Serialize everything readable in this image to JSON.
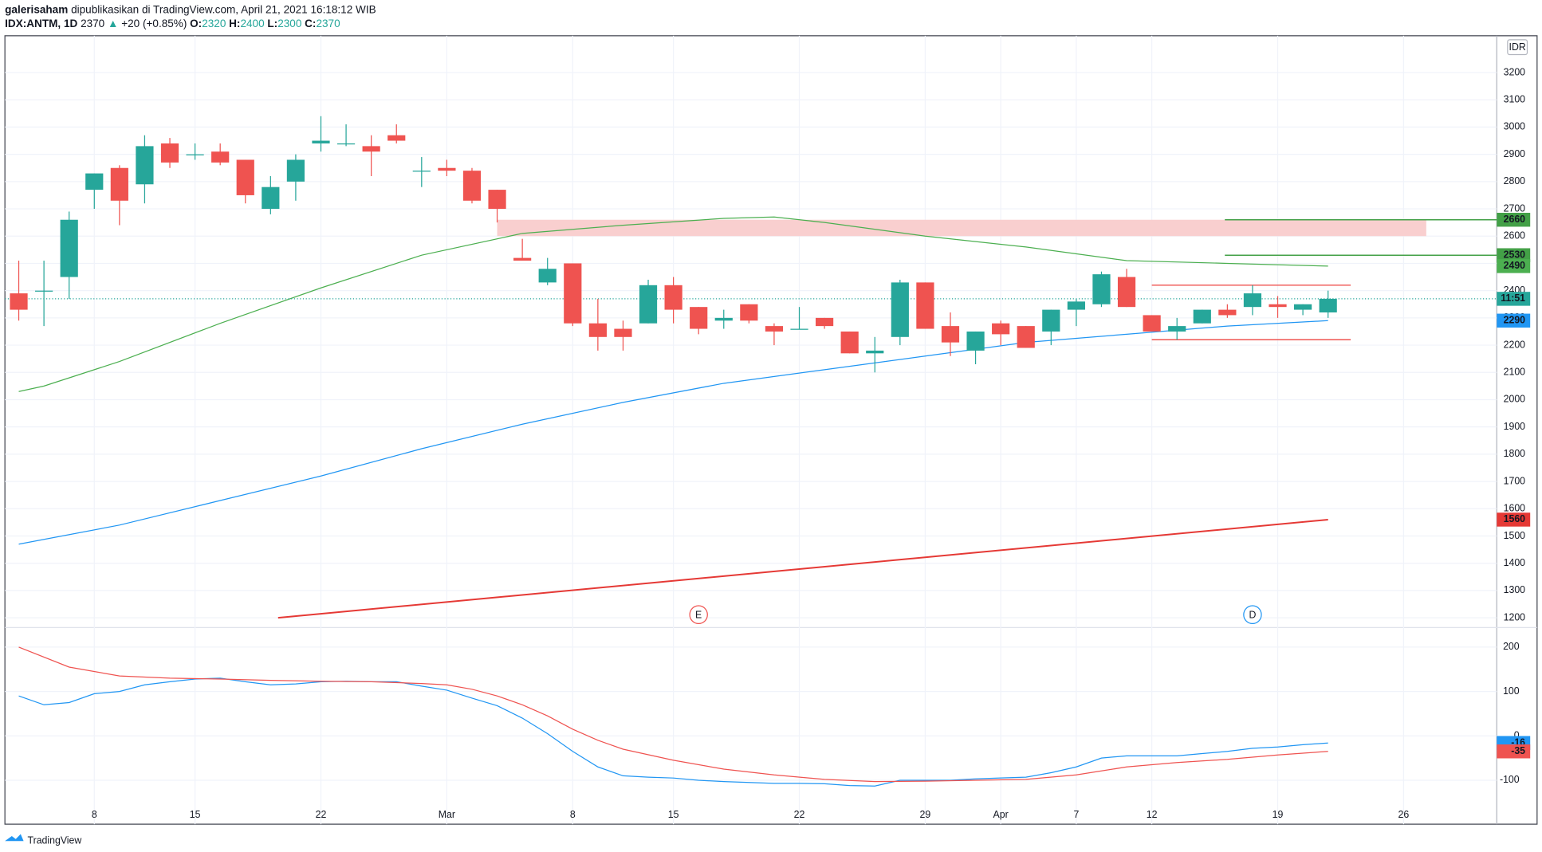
{
  "header": {
    "author": "galerisaham",
    "published": "dipublikasikan di TradingView.com, April 21, 2021 16:18:12 WIB",
    "symbol": "IDX:ANTM, 1D",
    "last": "2370",
    "arrow": "▲",
    "change": "+20 (+0.85%)",
    "ohlc": [
      {
        "label": "O:",
        "value": "2320"
      },
      {
        "label": "H:",
        "value": "2400"
      },
      {
        "label": "L:",
        "value": "2300"
      },
      {
        "label": "C:",
        "value": "2370"
      }
    ]
  },
  "footer": "TradingView",
  "chart_data": {
    "type": "candlestick",
    "currency": "IDR",
    "xlim": [
      -0.55,
      58.7
    ],
    "xticks": [
      {
        "value": 3,
        "label": "8"
      },
      {
        "value": 7,
        "label": "15"
      },
      {
        "value": 12,
        "label": "22"
      },
      {
        "value": 17,
        "label": "Mar"
      },
      {
        "value": 22,
        "label": "8"
      },
      {
        "value": 26,
        "label": "15"
      },
      {
        "value": 31,
        "label": "22"
      },
      {
        "value": 36,
        "label": "29"
      },
      {
        "value": 39,
        "label": "Apr"
      },
      {
        "value": 42,
        "label": "7"
      },
      {
        "value": 45,
        "label": "12"
      },
      {
        "value": 50,
        "label": "19"
      },
      {
        "value": 55,
        "label": "26"
      }
    ],
    "up_color": "#26a69a",
    "down_color": "#ef5350",
    "x": [
      0,
      1,
      2,
      3,
      4,
      5,
      6,
      7,
      8,
      9,
      10,
      11,
      12,
      13,
      14,
      15,
      16,
      17,
      18,
      19,
      20,
      21,
      22,
      23,
      24,
      25,
      26,
      27,
      28,
      29,
      30,
      31,
      32,
      33,
      34,
      35,
      36,
      37,
      38,
      39,
      40,
      41,
      42,
      43,
      44,
      45,
      46,
      47,
      48,
      49,
      50,
      51,
      52
    ],
    "open": [
      2390,
      2400,
      2450,
      2770,
      2850,
      2790,
      2940,
      2900,
      2910,
      2880,
      2700,
      2800,
      2940,
      2940,
      2930,
      2970,
      2840,
      2850,
      2840,
      2770,
      2520,
      2430,
      2500,
      2280,
      2260,
      2280,
      2420,
      2340,
      2290,
      2350,
      2270,
      2260,
      2300,
      2250,
      2170,
      2230,
      2430,
      2270,
      2180,
      2280,
      2270,
      2250,
      2330,
      2350,
      2450,
      2310,
      2250,
      2280,
      2330,
      2340,
      2350,
      2330,
      2320
    ],
    "high": [
      2510,
      2510,
      2690,
      2830,
      2860,
      2970,
      2960,
      2940,
      2940,
      2880,
      2820,
      2900,
      3040,
      3010,
      2970,
      3010,
      2890,
      2880,
      2850,
      2770,
      2590,
      2520,
      2500,
      2370,
      2290,
      2440,
      2450,
      2340,
      2330,
      2350,
      2280,
      2340,
      2300,
      2250,
      2230,
      2440,
      2430,
      2320,
      2250,
      2290,
      2270,
      2330,
      2370,
      2470,
      2480,
      2310,
      2300,
      2330,
      2350,
      2420,
      2380,
      2350,
      2400
    ],
    "low": [
      2290,
      2270,
      2370,
      2700,
      2640,
      2720,
      2850,
      2880,
      2860,
      2720,
      2680,
      2730,
      2910,
      2930,
      2820,
      2940,
      2780,
      2820,
      2720,
      2650,
      2510,
      2420,
      2270,
      2180,
      2180,
      2280,
      2280,
      2240,
      2260,
      2280,
      2200,
      2260,
      2260,
      2170,
      2100,
      2200,
      2260,
      2160,
      2130,
      2200,
      2190,
      2200,
      2270,
      2340,
      2340,
      2250,
      2220,
      2280,
      2300,
      2310,
      2300,
      2310,
      2300
    ],
    "close": [
      2330,
      2400,
      2660,
      2830,
      2730,
      2930,
      2870,
      2900,
      2870,
      2750,
      2780,
      2880,
      2950,
      2940,
      2910,
      2950,
      2840,
      2840,
      2730,
      2700,
      2510,
      2480,
      2280,
      2230,
      2230,
      2420,
      2330,
      2260,
      2300,
      2290,
      2250,
      2260,
      2270,
      2170,
      2180,
      2430,
      2260,
      2210,
      2250,
      2240,
      2190,
      2330,
      2360,
      2460,
      2340,
      2250,
      2270,
      2330,
      2310,
      2390,
      2340,
      2350,
      2370
    ],
    "ylim": [
      1164,
      3335
    ],
    "yticks": [
      1200,
      1300,
      1400,
      1500,
      1600,
      1700,
      1800,
      1900,
      2000,
      2100,
      2200,
      2300,
      2400,
      2500,
      2600,
      2700,
      2800,
      2900,
      3000,
      3100,
      3200
    ],
    "lines": [
      {
        "color": "#4caf50",
        "x": [
          0,
          1,
          4,
          8,
          12,
          16,
          20,
          24,
          28,
          30,
          32,
          36,
          40,
          44,
          48,
          52
        ],
        "values": [
          2030,
          2050,
          2140,
          2280,
          2410,
          2530,
          2610,
          2640,
          2665,
          2670,
          2650,
          2600,
          2560,
          2510,
          2500,
          2490
        ]
      },
      {
        "color": "#2196f3",
        "x": [
          0,
          4,
          8,
          12,
          16,
          20,
          24,
          28,
          32,
          36,
          40,
          44,
          48,
          52
        ],
        "values": [
          1470,
          1540,
          1630,
          1720,
          1820,
          1910,
          1990,
          2060,
          2110,
          2160,
          2210,
          2240,
          2270,
          2290
        ]
      },
      {
        "color": "#e53935",
        "x": [
          10.3,
          52
        ],
        "values": [
          1200,
          1560
        ]
      }
    ],
    "zone": {
      "color": "#f9cfcf",
      "x": [
        19,
        55.9
      ],
      "values": [
        2600,
        2660
      ]
    },
    "levels": [
      {
        "color": "#43a047",
        "value": 2660,
        "x": [
          47.9,
          58.7
        ]
      },
      {
        "color": "#43a047",
        "value": 2530,
        "x": [
          47.9,
          58.7
        ]
      },
      {
        "color": "#ef5350",
        "value": 2420,
        "x": [
          45,
          52.9
        ]
      },
      {
        "color": "#ef5350",
        "value": 2220,
        "x": [
          45,
          52.9
        ]
      }
    ],
    "current_price": {
      "value": 2370,
      "label": "11:51",
      "color": "#26a69a"
    },
    "price_labels": [
      {
        "value": 2660,
        "color": "#43a047"
      },
      {
        "value": 2530,
        "color": "#43a047"
      },
      {
        "value": 2490,
        "color": "#4caf50"
      },
      {
        "value": 2290,
        "color": "#2196f3"
      },
      {
        "value": 1560,
        "color": "#e53935"
      }
    ],
    "events": [
      {
        "label": "E",
        "x": 27,
        "color": "#ef5350"
      },
      {
        "label": "D",
        "x": 49,
        "color": "#2196f3"
      }
    ],
    "indicator": {
      "ylim": [
        -199,
        244
      ],
      "yticks": [
        -100,
        0,
        100,
        200
      ],
      "series": [
        {
          "color": "#2196f3",
          "x": [
            0,
            1,
            2,
            3,
            4,
            5,
            6,
            7,
            8,
            9,
            10,
            11,
            12,
            13,
            14,
            15,
            16,
            17,
            18,
            19,
            20,
            21,
            22,
            23,
            24,
            25,
            26,
            27,
            28,
            29,
            30,
            31,
            32,
            33,
            34,
            35,
            36,
            37,
            38,
            39,
            40,
            41,
            42,
            43,
            44,
            45,
            46,
            47,
            48,
            49,
            50,
            51,
            52
          ],
          "values": [
            90,
            70,
            75,
            95,
            100,
            115,
            122,
            128,
            130,
            122,
            115,
            117,
            122,
            123,
            122,
            122,
            112,
            103,
            85,
            68,
            40,
            5,
            -35,
            -70,
            -90,
            -93,
            -95,
            -100,
            -103,
            -105,
            -107,
            -107,
            -108,
            -112,
            -113,
            -100,
            -100,
            -100,
            -97,
            -95,
            -93,
            -83,
            -70,
            -50,
            -45,
            -45,
            -45,
            -40,
            -35,
            -28,
            -25,
            -20,
            -16
          ]
        },
        {
          "color": "#ef5350",
          "x": [
            0,
            2,
            4,
            6,
            8,
            10,
            12,
            14,
            16,
            17,
            18,
            19,
            20,
            21,
            22,
            23,
            24,
            26,
            28,
            30,
            32,
            34,
            36,
            38,
            40,
            42,
            44,
            46,
            48,
            50,
            52
          ],
          "values": [
            200,
            155,
            135,
            130,
            128,
            125,
            123,
            122,
            118,
            115,
            105,
            90,
            70,
            45,
            15,
            -10,
            -30,
            -55,
            -75,
            -88,
            -98,
            -103,
            -102,
            -100,
            -98,
            -88,
            -70,
            -60,
            -53,
            -43,
            -35
          ]
        }
      ],
      "labels": [
        {
          "value": -16,
          "color": "#2196f3"
        },
        {
          "value": -35,
          "color": "#ef5350"
        }
      ]
    }
  }
}
